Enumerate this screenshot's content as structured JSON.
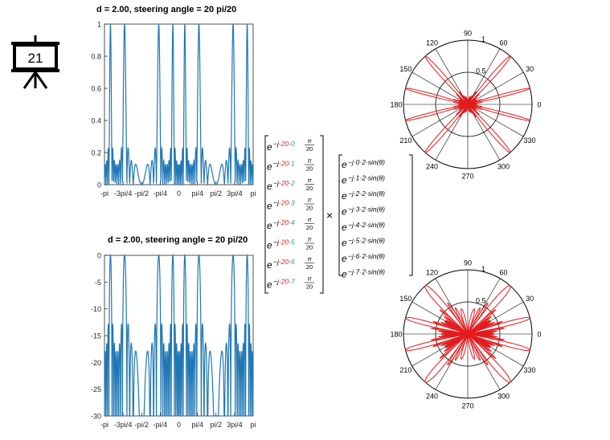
{
  "slide": {
    "number": "21"
  },
  "colors": {
    "curve": "#1f77b4",
    "polar": "#e41a1c",
    "red_index": "#e41a1c",
    "blue_index": "#1f8dd6"
  },
  "chart_data": [
    {
      "type": "line",
      "title": "d = 2.00, steering angle  = 20 pi/20",
      "x_ticks": [
        "-pi",
        "-3pi/4",
        "-pi/2",
        "-pi/4",
        "0",
        "pi/4",
        "pi/2",
        "3pi/4",
        "pi"
      ],
      "y_ticks": [
        "0",
        "0.2",
        "0.4",
        "0.6",
        "0.8",
        "1"
      ],
      "ylim": [
        0,
        1
      ],
      "scale": "linear",
      "series": [
        {
          "values_note": "array factor magnitude, 8 elements"
        }
      ]
    },
    {
      "type": "line",
      "title": "d = 2.00, steering angle  = 20 pi/20",
      "x_ticks": [
        "-pi",
        "-3pi/4",
        "-pi/2",
        "-pi/4",
        "0",
        "pi/4",
        "pi/2",
        "3pi/4",
        "pi"
      ],
      "y_ticks": [
        "0",
        "-5",
        "-10",
        "-15",
        "-20",
        "-25",
        "-30"
      ],
      "ylim": [
        -30,
        0
      ],
      "scale": "dB",
      "series": [
        {
          "values_note": "array factor in dB, 8 elements"
        }
      ]
    },
    {
      "type": "polar",
      "angle_labels": [
        "90",
        "60",
        "30",
        "0",
        "330",
        "300",
        "270",
        "240",
        "210",
        "180",
        "150",
        "120"
      ],
      "radial_labels": [
        "0.5",
        "1"
      ]
    },
    {
      "type": "polar",
      "angle_labels": [
        "90",
        "60",
        "30",
        "0",
        "330",
        "300",
        "270",
        "240",
        "210",
        "180",
        "150",
        "120"
      ],
      "radial_labels": [
        "0.5",
        "1"
      ]
    }
  ],
  "matrix": {
    "steering_coef": "20",
    "steering_frac_num": "π",
    "steering_frac_den": "20",
    "array_coef": "2",
    "indices": [
      "0",
      "1",
      "2",
      "3",
      "4",
      "5",
      "6",
      "7"
    ],
    "times": "×"
  }
}
